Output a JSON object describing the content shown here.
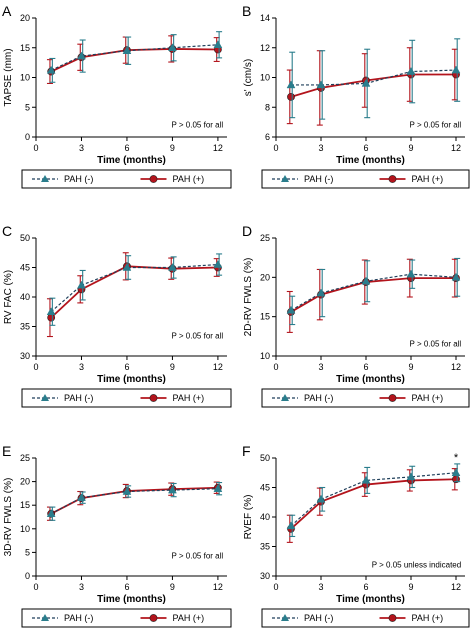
{
  "colors": {
    "neg": "#2a7d8c",
    "pos": "#b3141c"
  },
  "chart_data": [
    {
      "type": "line",
      "panel": "A",
      "ylabel": "TAPSE (mm)",
      "xlabel": "Time (months)",
      "note": "P > 0.05 for all",
      "ylim": [
        0,
        20
      ],
      "yticks": [
        0,
        5,
        10,
        15,
        20
      ],
      "xlim": [
        0,
        12.6
      ],
      "xticks": [
        0,
        3,
        6,
        9,
        12
      ],
      "x": [
        1,
        3,
        6,
        9,
        12
      ],
      "series": [
        {
          "name": "PAH (-)",
          "values": [
            11.2,
            13.6,
            14.5,
            15.0,
            15.5
          ],
          "err": [
            2.0,
            2.7,
            2.3,
            2.2,
            2.2
          ]
        },
        {
          "name": "PAH (+)",
          "values": [
            11.0,
            13.4,
            14.6,
            14.8,
            14.7
          ],
          "err": [
            2.0,
            2.2,
            2.2,
            2.2,
            2.0
          ]
        }
      ],
      "annotation": ""
    },
    {
      "type": "line",
      "panel": "B",
      "ylabel": "s' (cm/s)",
      "xlabel": "Time (months)",
      "note": "P > 0.05 for all",
      "ylim": [
        6,
        14
      ],
      "yticks": [
        6,
        8,
        10,
        12,
        14
      ],
      "xlim": [
        0,
        12.6
      ],
      "xticks": [
        0,
        3,
        6,
        9,
        12
      ],
      "x": [
        1,
        3,
        6,
        9,
        12
      ],
      "series": [
        {
          "name": "PAH (-)",
          "values": [
            9.5,
            9.5,
            9.6,
            10.4,
            10.5
          ],
          "err": [
            2.2,
            2.3,
            2.3,
            2.1,
            2.1
          ]
        },
        {
          "name": "PAH (+)",
          "values": [
            8.7,
            9.3,
            9.8,
            10.2,
            10.2
          ],
          "err": [
            1.8,
            2.5,
            1.8,
            1.8,
            1.7
          ]
        }
      ],
      "annotation": ""
    },
    {
      "type": "line",
      "panel": "C",
      "ylabel": "RV FAC (%)",
      "xlabel": "Time (months)",
      "note": "P > 0.05 for all",
      "ylim": [
        30,
        50
      ],
      "yticks": [
        30,
        35,
        40,
        45,
        50
      ],
      "xlim": [
        0,
        12.6
      ],
      "xticks": [
        0,
        3,
        6,
        9,
        12
      ],
      "x": [
        1,
        3,
        6,
        9,
        12
      ],
      "series": [
        {
          "name": "PAH (-)",
          "values": [
            37.5,
            42.0,
            45.0,
            45.0,
            45.5
          ],
          "err": [
            2.3,
            2.5,
            2.0,
            1.8,
            1.8
          ]
        },
        {
          "name": "PAH (+)",
          "values": [
            36.5,
            41.3,
            45.2,
            44.8,
            45.0
          ],
          "err": [
            3.2,
            2.3,
            2.3,
            1.8,
            1.5
          ]
        }
      ],
      "annotation": ""
    },
    {
      "type": "line",
      "panel": "D",
      "ylabel": "2D-RV FWLS (%)",
      "xlabel": "Time (months)",
      "note": "P > 0.05 for all",
      "ylim": [
        10,
        25
      ],
      "yticks": [
        10,
        15,
        20,
        25
      ],
      "xlim": [
        0,
        12.6
      ],
      "xticks": [
        0,
        3,
        6,
        9,
        12
      ],
      "x": [
        1,
        3,
        6,
        9,
        12
      ],
      "series": [
        {
          "name": "PAH (-)",
          "values": [
            15.8,
            18.0,
            19.5,
            20.4,
            20.0
          ],
          "err": [
            1.8,
            3.0,
            2.6,
            1.8,
            2.4
          ]
        },
        {
          "name": "PAH (+)",
          "values": [
            15.6,
            17.8,
            19.4,
            19.9,
            19.9
          ],
          "err": [
            2.6,
            3.2,
            2.8,
            2.4,
            2.4
          ]
        }
      ],
      "annotation": ""
    },
    {
      "type": "line",
      "panel": "E",
      "ylabel": "3D-RV FWLS (%)",
      "xlabel": "Time (months)",
      "note": "P > 0.05 for all",
      "ylim": [
        0,
        25
      ],
      "yticks": [
        0,
        5,
        10,
        15,
        20,
        25
      ],
      "xlim": [
        0,
        12.6
      ],
      "xticks": [
        0,
        3,
        6,
        9,
        12
      ],
      "x": [
        1,
        3,
        6,
        9,
        12
      ],
      "series": [
        {
          "name": "PAH (-)",
          "values": [
            13.2,
            16.6,
            17.9,
            18.2,
            18.5
          ],
          "err": [
            1.4,
            1.2,
            1.2,
            1.4,
            1.3
          ]
        },
        {
          "name": "PAH (+)",
          "values": [
            13.2,
            16.5,
            18.0,
            18.4,
            18.7
          ],
          "err": [
            1.4,
            1.4,
            1.4,
            1.3,
            1.2
          ]
        }
      ],
      "annotation": ""
    },
    {
      "type": "line",
      "panel": "F",
      "ylabel": "RVEF (%)",
      "xlabel": "Time (months)",
      "note": "P > 0.05 unless indicated",
      "ylim": [
        30,
        50
      ],
      "yticks": [
        30,
        35,
        40,
        45,
        50
      ],
      "xlim": [
        0,
        12.6
      ],
      "xticks": [
        0,
        3,
        6,
        9,
        12
      ],
      "x": [
        1,
        3,
        6,
        9,
        12
      ],
      "series": [
        {
          "name": "PAH (-)",
          "values": [
            38.5,
            43.0,
            46.2,
            46.8,
            47.5
          ],
          "err": [
            1.8,
            2.0,
            2.2,
            1.8,
            1.5
          ]
        },
        {
          "name": "PAH (+)",
          "values": [
            38.0,
            42.6,
            45.5,
            46.2,
            46.4
          ],
          "err": [
            2.3,
            2.3,
            2.0,
            1.8,
            1.8
          ]
        }
      ],
      "annotation": "*"
    }
  ]
}
